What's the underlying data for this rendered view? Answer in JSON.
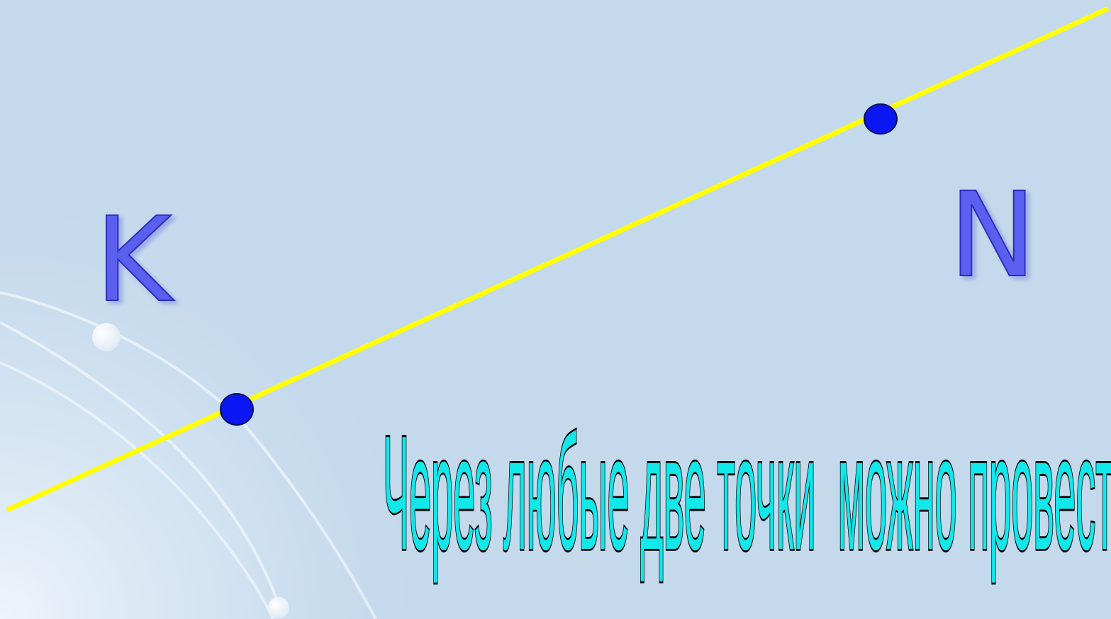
{
  "points": [
    {
      "label": "K"
    },
    {
      "label": "N"
    }
  ],
  "theorem": {
    "text": "Через любые две точки  можно провести прямую,  и притом только одну"
  },
  "colors": {
    "background": "#c4d9ec",
    "line": "#ffff00",
    "point_fill": "#0b17f2",
    "point_stroke": "#001060",
    "label_fill": "#5a5ff0",
    "text_fill": "#12e7ea",
    "text_stroke": "#000000"
  }
}
